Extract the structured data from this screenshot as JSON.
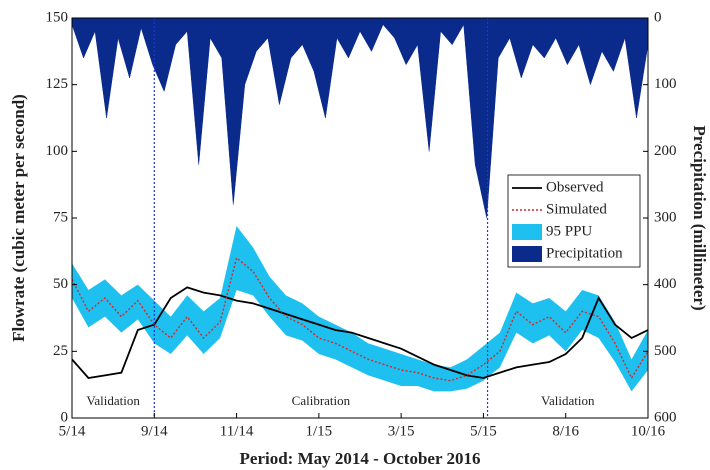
{
  "chart_data": {
    "type": "hydrograph",
    "x_label": "Period: May 2014 - October 2016",
    "y_label": "Flowrate (cubic meter per second)",
    "y2_label": "Precipitation (millimeter)",
    "xlim": [
      0,
      7
    ],
    "xticks": [
      {
        "value": 0,
        "label": "5/14"
      },
      {
        "value": 1,
        "label": "9/14"
      },
      {
        "value": 2,
        "label": "11/14"
      },
      {
        "value": 3,
        "label": "1/15"
      },
      {
        "value": 4,
        "label": "3/15"
      },
      {
        "value": 5,
        "label": "5/15"
      },
      {
        "value": 6,
        "label": "8/16"
      },
      {
        "value": 7,
        "label": "10/16"
      }
    ],
    "ylim": [
      0,
      150
    ],
    "yticks": [
      0,
      25,
      50,
      75,
      100,
      125,
      150
    ],
    "y2lim": [
      0,
      600
    ],
    "y2ticks": [
      0,
      100,
      200,
      300,
      400,
      500,
      600
    ],
    "y2_inverted": true,
    "legend": "right",
    "period_boundaries": [
      1.0,
      5.05
    ],
    "annotations": [
      "Validation",
      "Calibration",
      "Validation"
    ],
    "x": [
      0,
      0.2,
      0.4,
      0.6,
      0.8,
      1.0,
      1.2,
      1.4,
      1.6,
      1.8,
      2.0,
      2.2,
      2.4,
      2.6,
      2.8,
      3.0,
      3.2,
      3.4,
      3.6,
      3.8,
      4.0,
      4.2,
      4.4,
      4.6,
      4.8,
      5.0,
      5.2,
      5.4,
      5.6,
      5.8,
      6.0,
      6.2,
      6.4,
      6.6,
      6.8,
      7.0
    ],
    "series": [
      {
        "name": "Observed",
        "kind": "line",
        "color": "#000000",
        "values": [
          22,
          15,
          16,
          17,
          33,
          35,
          45,
          49,
          47,
          46,
          44,
          43,
          41,
          39,
          37,
          35,
          33,
          32,
          30,
          28,
          26,
          23,
          20,
          18,
          16,
          15,
          17,
          19,
          20,
          21,
          24,
          30,
          45,
          35,
          30,
          33
        ]
      },
      {
        "name": "Simulated",
        "kind": "dotted",
        "color": "#d62728",
        "values": [
          52,
          40,
          45,
          38,
          44,
          35,
          30,
          38,
          30,
          36,
          60,
          55,
          45,
          38,
          35,
          30,
          28,
          25,
          22,
          20,
          18,
          17,
          15,
          14,
          16,
          20,
          25,
          40,
          35,
          38,
          32,
          40,
          38,
          28,
          15,
          25
        ]
      },
      {
        "name": "95 PPU",
        "kind": "band",
        "color": "#1ec0f0",
        "upper": [
          58,
          48,
          52,
          46,
          50,
          44,
          38,
          46,
          40,
          45,
          72,
          64,
          53,
          46,
          43,
          38,
          35,
          32,
          28,
          26,
          24,
          22,
          20,
          19,
          22,
          27,
          32,
          47,
          43,
          45,
          40,
          48,
          46,
          36,
          22,
          33
        ],
        "lower": [
          45,
          34,
          38,
          32,
          37,
          28,
          24,
          31,
          24,
          30,
          48,
          46,
          38,
          31,
          29,
          24,
          22,
          19,
          16,
          14,
          12,
          12,
          10,
          10,
          11,
          14,
          19,
          32,
          28,
          31,
          25,
          33,
          30,
          21,
          10,
          18
        ]
      },
      {
        "name": "Precipitation",
        "kind": "area",
        "axis": "y2",
        "color": "#0a2a8c",
        "x": [
          0,
          0.14,
          0.28,
          0.42,
          0.56,
          0.7,
          0.84,
          0.98,
          1.12,
          1.26,
          1.4,
          1.54,
          1.68,
          1.82,
          1.96,
          2.1,
          2.24,
          2.38,
          2.52,
          2.66,
          2.8,
          2.94,
          3.08,
          3.22,
          3.36,
          3.5,
          3.64,
          3.78,
          3.92,
          4.06,
          4.2,
          4.34,
          4.48,
          4.62,
          4.76,
          4.9,
          5.04,
          5.18,
          5.32,
          5.46,
          5.6,
          5.74,
          5.88,
          6.02,
          6.16,
          6.3,
          6.44,
          6.58,
          6.72,
          6.86,
          7.0
        ],
        "values": [
          10,
          60,
          20,
          150,
          30,
          90,
          15,
          70,
          110,
          40,
          20,
          220,
          30,
          60,
          280,
          100,
          50,
          30,
          130,
          60,
          40,
          80,
          150,
          30,
          60,
          20,
          50,
          10,
          30,
          70,
          40,
          200,
          20,
          40,
          10,
          220,
          300,
          60,
          30,
          90,
          40,
          60,
          30,
          70,
          40,
          100,
          50,
          80,
          30,
          150,
          40
        ]
      }
    ]
  }
}
